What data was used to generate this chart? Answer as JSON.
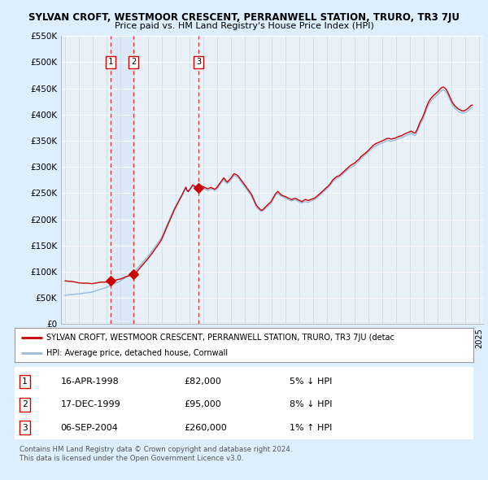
{
  "title": "SYLVAN CROFT, WESTMOOR CRESCENT, PERRANWELL STATION, TRURO, TR3 7JU",
  "subtitle": "Price paid vs. HM Land Registry's House Price Index (HPI)",
  "legend_line1": "SYLVAN CROFT, WESTMOOR CRESCENT, PERRANWELL STATION, TRURO, TR3 7JU (detac",
  "legend_line2": "HPI: Average price, detached house, Cornwall",
  "footer1": "Contains HM Land Registry data © Crown copyright and database right 2024.",
  "footer2": "This data is licensed under the Open Government Licence v3.0.",
  "sales": [
    {
      "label": "1",
      "date": "16-APR-1998",
      "price": 82000,
      "note": "5% ↓ HPI",
      "x": 1998.29
    },
    {
      "label": "2",
      "date": "17-DEC-1999",
      "price": 95000,
      "note": "8% ↓ HPI",
      "x": 1999.96
    },
    {
      "label": "3",
      "date": "06-SEP-2004",
      "price": 260000,
      "note": "1% ↑ HPI",
      "x": 2004.68
    }
  ],
  "ylim": [
    0,
    550000
  ],
  "yticks": [
    0,
    50000,
    100000,
    150000,
    200000,
    250000,
    300000,
    350000,
    400000,
    450000,
    500000,
    550000
  ],
  "xlim_start": 1994.7,
  "xlim_end": 2025.3,
  "bg_color": "#ddeeff",
  "plot_bg": "#e8f0f8",
  "grid_color": "#ffffff",
  "sale_line_color": "#dd2222",
  "sale_marker_color": "#cc0000",
  "hpi_line_color": "#99bbdd",
  "property_line_color": "#cc0000",
  "sale_box_color": "#cc0000",
  "highlight_bg": "#dce8f5"
}
